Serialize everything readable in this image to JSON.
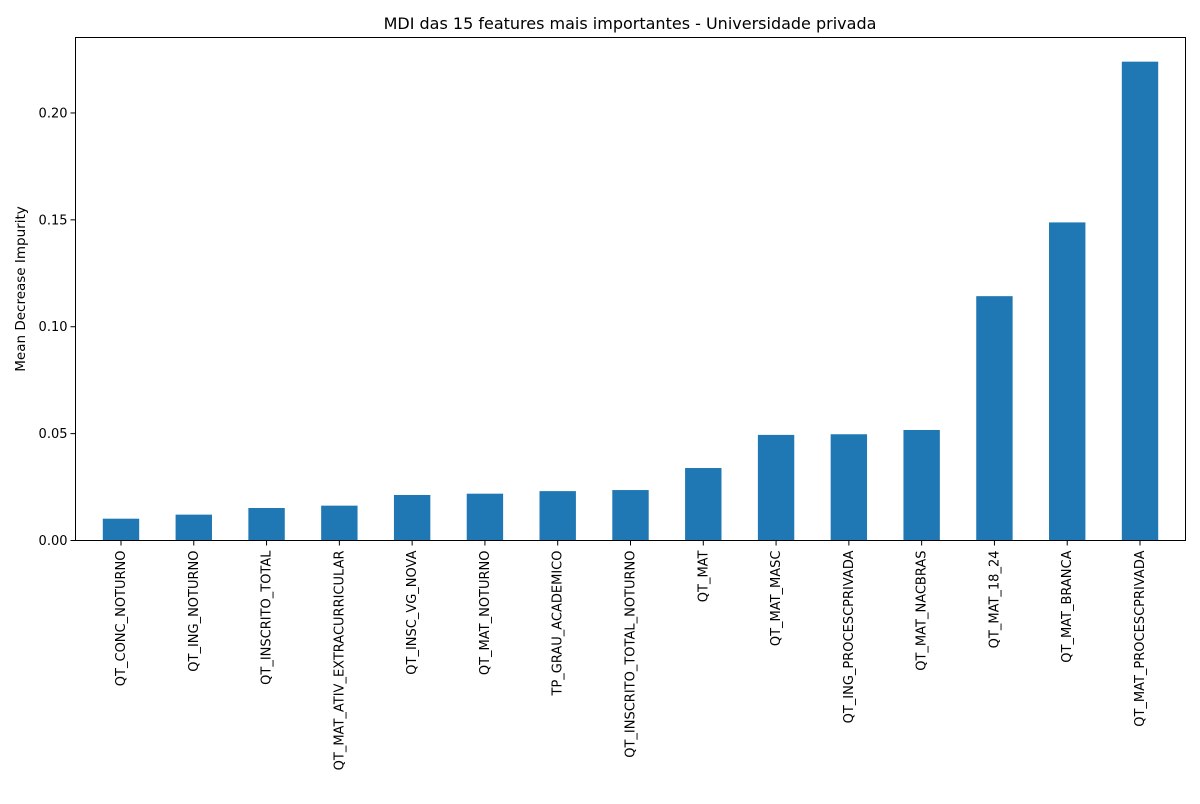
{
  "chart_data": {
    "type": "bar",
    "title": "MDI das 15 features mais importantes - Universidade privada",
    "xlabel": "",
    "ylabel": "Mean Decrease Impurity",
    "categories": [
      "QT_CONC_NOTURNO",
      "QT_ING_NOTURNO",
      "QT_INSCRITO_TOTAL",
      "QT_MAT_ATIV_EXTRACURRICULAR",
      "QT_INSC_VG_NOVA",
      "QT_MAT_NOTURNO",
      "TP_GRAU_ACADEMICO",
      "QT_INSCRITO_TOTAL_NOTURNO",
      "QT_MAT",
      "QT_MAT_MASC",
      "QT_ING_PROCESCPRIVADA",
      "QT_MAT_NACBRAS",
      "QT_MAT_18_24",
      "QT_MAT_BRANCA",
      "QT_MAT_PROCESCPRIVADA"
    ],
    "values": [
      0.0102,
      0.0121,
      0.0152,
      0.0163,
      0.0213,
      0.0219,
      0.0231,
      0.0236,
      0.0339,
      0.0494,
      0.0497,
      0.0517,
      0.1143,
      0.1488,
      0.224
    ],
    "ylim": [
      0,
      0.2353
    ],
    "yticks": [
      0.0,
      0.05,
      0.1,
      0.15,
      0.2
    ],
    "ytick_labels": [
      "0.00",
      "0.05",
      "0.10",
      "0.15",
      "0.20"
    ],
    "grid": false,
    "legend": "none",
    "bar_color": "#1f77b4"
  }
}
